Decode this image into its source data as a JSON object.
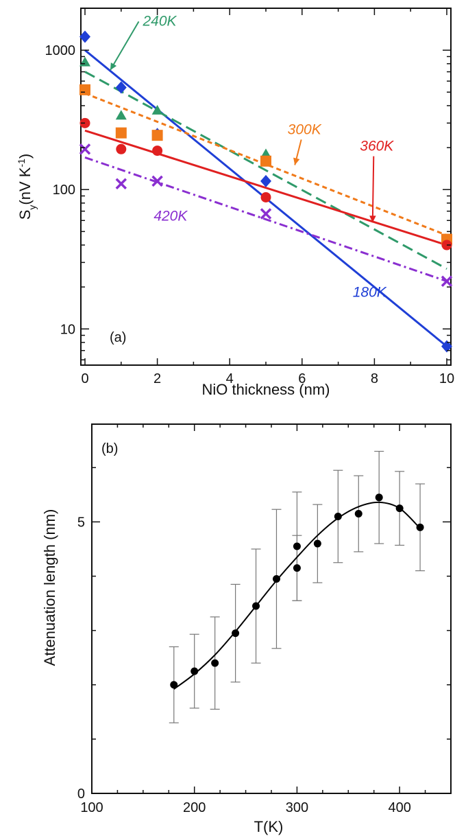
{
  "chart_data": [
    {
      "panel": "(a)",
      "type": "scatter",
      "xlabel": "NiO thickness (nm)",
      "ylabel": "S_y (nV K^-1)",
      "ylabel_main": "S",
      "ylabel_sub": "y",
      "ylabel_rest": "(nV K",
      "ylabel_sup": "-1",
      "ylabel_close": ")",
      "xlim": [
        0,
        10
      ],
      "ylim": [
        5.5,
        2000
      ],
      "yscale": "log",
      "xticks": [
        0,
        2,
        4,
        6,
        8,
        10
      ],
      "yticks": [
        10,
        100,
        1000
      ],
      "grid": false,
      "series": [
        {
          "name": "180K",
          "color": "#1f3fd6",
          "marker": "diamond",
          "line": "solid",
          "points": [
            [
              0,
              1250
            ],
            [
              1,
              540
            ],
            [
              2,
              250
            ],
            [
              5,
              115
            ],
            [
              10,
              7.5
            ]
          ],
          "fit": [
            [
              0,
              1000
            ],
            [
              10,
              7.5
            ]
          ]
        },
        {
          "name": "240K",
          "color": "#2f9a6a",
          "marker": "triangle",
          "line": "longdash",
          "points": [
            [
              0,
              820
            ],
            [
              1,
              340
            ],
            [
              2,
              370
            ],
            [
              5,
              180
            ],
            [
              10,
              42
            ]
          ],
          "fit": [
            [
              0,
              700
            ],
            [
              10,
              27
            ]
          ]
        },
        {
          "name": "300K",
          "color": "#f07a1a",
          "marker": "square",
          "line": "dash",
          "points": [
            [
              0,
              520
            ],
            [
              1,
              255
            ],
            [
              2,
              245
            ],
            [
              5,
              160
            ],
            [
              10,
              44
            ]
          ],
          "fit": [
            [
              0,
              490
            ],
            [
              10,
              47
            ]
          ]
        },
        {
          "name": "360K",
          "color": "#e02020",
          "marker": "circle",
          "line": "solid",
          "points": [
            [
              0,
              300
            ],
            [
              1,
              195
            ],
            [
              2,
              190
            ],
            [
              5,
              88
            ],
            [
              10,
              40
            ]
          ],
          "fit": [
            [
              0,
              265
            ],
            [
              10,
              40
            ]
          ]
        },
        {
          "name": "420K",
          "color": "#8a2fd0",
          "marker": "x",
          "line": "dashdot",
          "points": [
            [
              0,
              195
            ],
            [
              1,
              110
            ],
            [
              2,
              115
            ],
            [
              5,
              67
            ],
            [
              10,
              22
            ]
          ],
          "fit": [
            [
              0,
              170
            ],
            [
              10,
              22
            ]
          ]
        }
      ],
      "annotations": [
        {
          "text": "240K",
          "series": "240K",
          "x": 1.6,
          "y": 1500,
          "arrow_to": [
            0.7,
            720
          ]
        },
        {
          "text": "300K",
          "series": "300K",
          "x": 5.6,
          "y": 250,
          "arrow_to": [
            5.8,
            150
          ]
        },
        {
          "text": "360K",
          "series": "360K",
          "x": 7.6,
          "y": 190,
          "arrow_to": [
            7.95,
            58
          ]
        },
        {
          "text": "420K",
          "series": "420K",
          "x": 1.9,
          "y": 60
        },
        {
          "text": "180K",
          "series": "180K",
          "x": 7.4,
          "y": 17
        }
      ]
    },
    {
      "panel": "(b)",
      "type": "scatter",
      "xlabel": "T(K)",
      "ylabel": "Attenuation length (nm)",
      "xlim": [
        100,
        450
      ],
      "ylim": [
        0,
        6.8
      ],
      "xticks": [
        100,
        200,
        300,
        400
      ],
      "yticks": [
        0,
        5
      ],
      "grid": false,
      "points": [
        {
          "x": 180,
          "y": 2.0,
          "err": 0.7
        },
        {
          "x": 200,
          "y": 2.25,
          "err": 0.68
        },
        {
          "x": 220,
          "y": 2.4,
          "err": 0.85
        },
        {
          "x": 240,
          "y": 2.95,
          "err": 0.9
        },
        {
          "x": 260,
          "y": 3.45,
          "err": 1.05
        },
        {
          "x": 280,
          "y": 3.95,
          "err": 1.28
        },
        {
          "x": 300,
          "y": 4.15,
          "err": 0.6
        },
        {
          "x": 300,
          "y": 4.55,
          "err": 1.0
        },
        {
          "x": 320,
          "y": 4.6,
          "err": 0.72
        },
        {
          "x": 340,
          "y": 5.1,
          "err": 0.85
        },
        {
          "x": 360,
          "y": 5.15,
          "err": 0.7
        },
        {
          "x": 380,
          "y": 5.45,
          "err": 0.85
        },
        {
          "x": 400,
          "y": 5.25,
          "err": 0.68
        },
        {
          "x": 420,
          "y": 4.9,
          "err": 0.8
        }
      ],
      "fit": [
        [
          180,
          1.92
        ],
        [
          200,
          2.2
        ],
        [
          220,
          2.55
        ],
        [
          240,
          2.98
        ],
        [
          260,
          3.45
        ],
        [
          280,
          3.92
        ],
        [
          300,
          4.35
        ],
        [
          320,
          4.75
        ],
        [
          340,
          5.07
        ],
        [
          360,
          5.28
        ],
        [
          380,
          5.36
        ],
        [
          400,
          5.25
        ],
        [
          420,
          4.88
        ]
      ]
    }
  ]
}
